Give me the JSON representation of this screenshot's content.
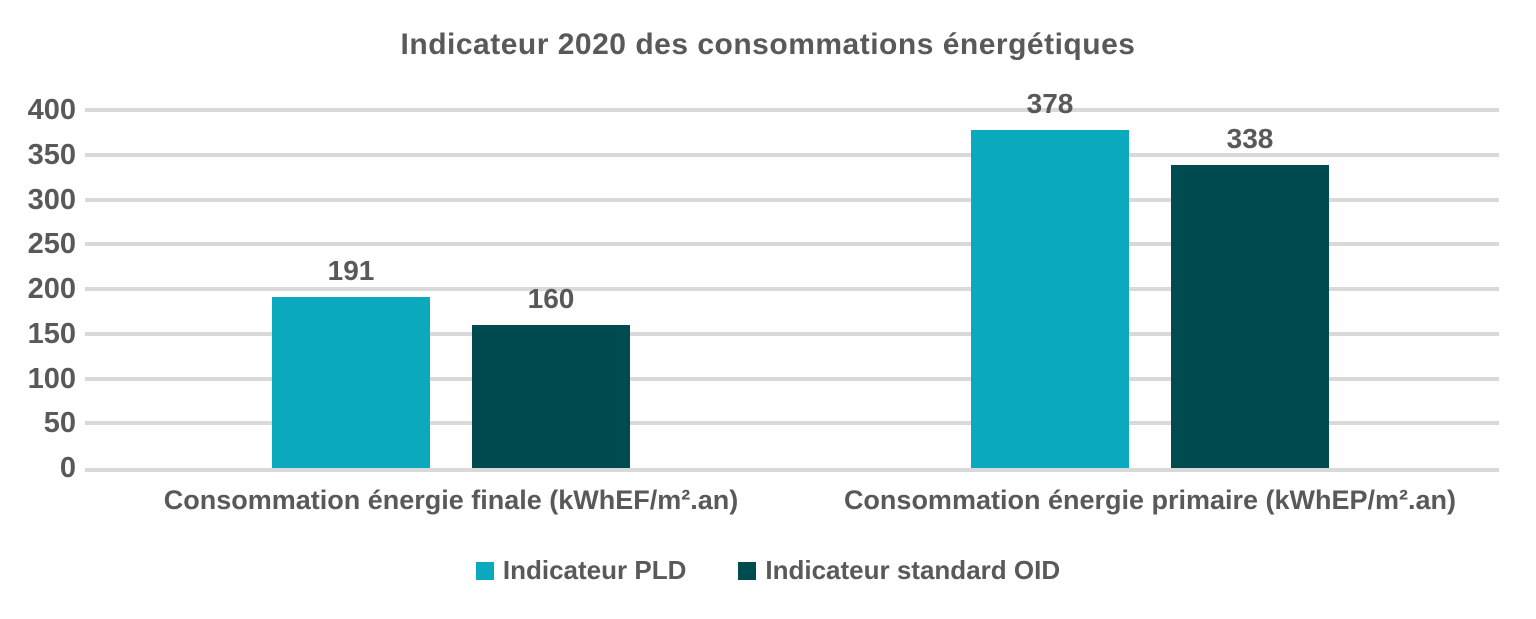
{
  "title": "Indicateur 2020 des consommations énergétiques",
  "colors": {
    "series_pld": "#0AA9BD",
    "series_oid": "#004B50",
    "text": "#595959",
    "gridline": "#D9D9D9",
    "background": "#FFFFFF"
  },
  "legend": {
    "items": [
      {
        "label": "Indicateur PLD",
        "color": "#0AA9BD"
      },
      {
        "label": "Indicateur standard OID",
        "color": "#004B50"
      }
    ]
  },
  "chart_data": {
    "type": "bar",
    "title": "Indicateur 2020 des consommations énergétiques",
    "categories": [
      "Consommation énergie finale (kWhEF/m².an)",
      "Consommation énergie primaire (kWhEP/m².an)"
    ],
    "series": [
      {
        "name": "Indicateur PLD",
        "color": "#0AA9BD",
        "values": [
          191,
          378
        ]
      },
      {
        "name": "Indicateur standard OID",
        "color": "#004B50",
        "values": [
          160,
          338
        ]
      }
    ],
    "ylim": [
      0,
      400
    ],
    "yticks": [
      0,
      50,
      100,
      150,
      200,
      250,
      300,
      350,
      400
    ],
    "xlabel": "",
    "ylabel": "",
    "grid": true,
    "data_labels": true,
    "legend_position": "bottom"
  }
}
